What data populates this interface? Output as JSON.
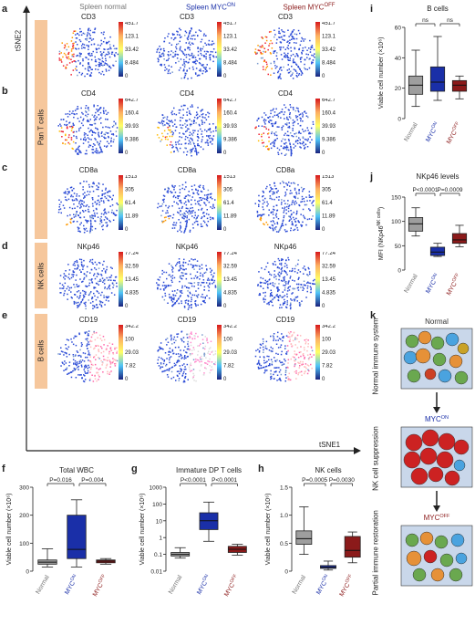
{
  "panels": {
    "a": "a",
    "b": "b",
    "c": "c",
    "d": "d",
    "e": "e",
    "f": "f",
    "g": "g",
    "h": "h",
    "i": "i",
    "j": "j",
    "k": "k"
  },
  "columns": {
    "normal": "Spleen normal",
    "myc_on_base": "Spleen MYC",
    "myc_on_sup": "ON",
    "myc_off_base": "Spleen MYC",
    "myc_off_sup": "OFF"
  },
  "axes": {
    "tsne2": "tSNE2",
    "tsne1": "tSNE1"
  },
  "groups": {
    "pan_t": "Pan T cells",
    "nk": "NK cells",
    "b": "B cells"
  },
  "rows": [
    {
      "marker": "CD3",
      "scale": [
        "451.7",
        "123.1",
        "33.42",
        "8.484",
        "0"
      ]
    },
    {
      "marker": "CD4",
      "scale": [
        "642.7",
        "160.4",
        "39.93",
        "9.386",
        "0"
      ]
    },
    {
      "marker": "CD8a",
      "scale": [
        "1513",
        "305",
        "61.4",
        "11.89",
        "0"
      ]
    },
    {
      "marker": "NKp46",
      "scale": [
        "77.24",
        "32.59",
        "13.45",
        "4.835",
        "0"
      ]
    },
    {
      "marker": "CD19",
      "scale": [
        "342.2",
        "100",
        "29.03",
        "7.82",
        "0"
      ]
    }
  ],
  "chart_data": [
    {
      "panel": "f",
      "type": "box",
      "title": "Total WBC",
      "ylabel": "Viable cell number (×10⁶)",
      "ylim": [
        0,
        300
      ],
      "yticks": [
        "0",
        "100",
        "200",
        "300"
      ],
      "categories": [
        "Normal",
        "MYC",
        "MYC"
      ],
      "category_sups": [
        "",
        "ON",
        "OFF"
      ],
      "boxes": [
        {
          "min": 15,
          "q1": 25,
          "median": 32,
          "q3": 40,
          "max": 80
        },
        {
          "min": 15,
          "q1": 45,
          "median": 78,
          "q3": 200,
          "max": 255
        },
        {
          "min": 25,
          "q1": 30,
          "median": 36,
          "q3": 40,
          "max": 45
        }
      ],
      "annotations": [
        "P=0.016",
        "P=0.004"
      ]
    },
    {
      "panel": "g",
      "type": "box",
      "title": "Immature DP T cells",
      "ylabel": "Viable cell number (×10⁶)",
      "log": true,
      "ylim": [
        0.01,
        1000
      ],
      "yticks": [
        "0.01",
        "0.1",
        "1",
        "10",
        "100",
        "1000"
      ],
      "categories": [
        "Normal",
        "MYC",
        "MYC"
      ],
      "category_sups": [
        "",
        "ON",
        "OFF"
      ],
      "boxes": [
        {
          "min": 0.06,
          "q1": 0.08,
          "median": 0.1,
          "q3": 0.13,
          "max": 0.25
        },
        {
          "min": 0.6,
          "q1": 3,
          "median": 10,
          "q3": 30,
          "max": 130
        },
        {
          "min": 0.09,
          "q1": 0.13,
          "median": 0.2,
          "q3": 0.3,
          "max": 0.4
        }
      ],
      "annotations": [
        "P<0.0001",
        "P<0.0001"
      ]
    },
    {
      "panel": "h",
      "type": "box",
      "title": "NK cells",
      "ylabel": "Viable cell number (×10⁶)",
      "ylim": [
        0,
        1.5
      ],
      "yticks": [
        "0",
        "0.5",
        "1.0",
        "1.5"
      ],
      "categories": [
        "Normal",
        "MYC",
        "MYC"
      ],
      "category_sups": [
        "",
        "ON",
        "OFF"
      ],
      "boxes": [
        {
          "min": 0.3,
          "q1": 0.48,
          "median": 0.58,
          "q3": 0.72,
          "max": 1.15
        },
        {
          "min": 0.02,
          "q1": 0.05,
          "median": 0.07,
          "q3": 0.1,
          "max": 0.18
        },
        {
          "min": 0.15,
          "q1": 0.25,
          "median": 0.37,
          "q3": 0.62,
          "max": 0.7
        }
      ],
      "annotations": [
        "P=0.0005",
        "P=0.0030"
      ]
    },
    {
      "panel": "i",
      "type": "box",
      "title": "B cells",
      "ylabel": "Viable cell number (×10⁶)",
      "ylim": [
        0,
        60
      ],
      "yticks": [
        "0",
        "20",
        "40",
        "60"
      ],
      "categories": [
        "Normal",
        "MYC",
        "MYC"
      ],
      "category_sups": [
        "",
        "ON",
        "OFF"
      ],
      "boxes": [
        {
          "min": 8,
          "q1": 16,
          "median": 22,
          "q3": 28,
          "max": 45
        },
        {
          "min": 12,
          "q1": 18,
          "median": 24,
          "q3": 34,
          "max": 54
        },
        {
          "min": 13,
          "q1": 18,
          "median": 22,
          "q3": 25,
          "max": 28
        }
      ],
      "annotations": [
        "ns",
        "ns"
      ]
    },
    {
      "panel": "j",
      "type": "box",
      "title": "NKp46 levels",
      "ylabel": "MFI (NKp46",
      "ylabel_sup": "NK cells",
      "ylabel_end": ")",
      "ylim": [
        0,
        150
      ],
      "yticks": [
        "0",
        "50",
        "100",
        "150"
      ],
      "categories": [
        "Normal",
        "MYC",
        "MYC"
      ],
      "category_sups": [
        "",
        "ON",
        "OFF"
      ],
      "boxes": [
        {
          "min": 70,
          "q1": 80,
          "median": 95,
          "q3": 108,
          "max": 128
        },
        {
          "min": 28,
          "q1": 30,
          "median": 37,
          "q3": 47,
          "max": 55
        },
        {
          "min": 48,
          "q1": 55,
          "median": 62,
          "q3": 75,
          "max": 92
        }
      ],
      "annotations": [
        "P<0.0001",
        "P=0.0009"
      ]
    }
  ],
  "k": {
    "normal": "Normal",
    "step1": "Normal immune system",
    "myc_on_base": "MYC",
    "myc_on_sup": "ON",
    "step2": "NK cell suppression",
    "myc_off_base": "MYC",
    "myc_off_sup": "OFF",
    "step3": "Partial immune restoration"
  },
  "colors": {
    "normal": "#777777",
    "on": "#1a2fa8",
    "off": "#8b1a1a",
    "band": "#f6c79c",
    "k_bg": "#c9d7ea"
  }
}
